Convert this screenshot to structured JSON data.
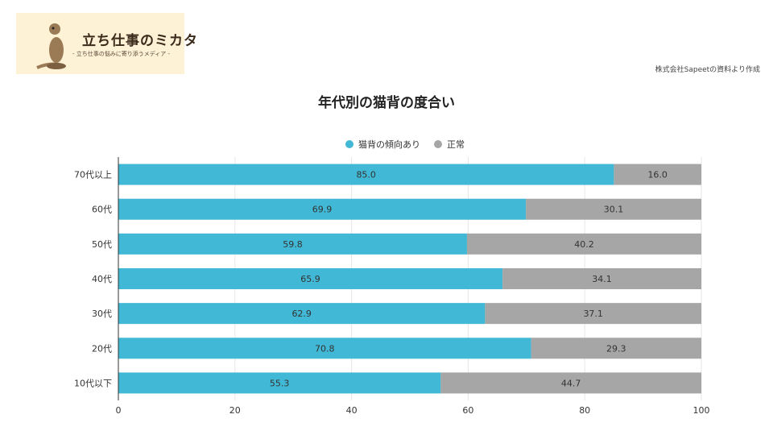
{
  "logo": {
    "title": "立ち仕事のミカタ",
    "tagline": "- 立ち仕事の悩みに寄り添うメディア -"
  },
  "source_note": "株式会社Sapeetの資料より作成",
  "colors": {
    "series1": "#41b8d5",
    "series2": "#a6a6a6",
    "grid": "#e6e6e6",
    "logo_bg": "#fdf1d6"
  },
  "chart_data": {
    "type": "bar",
    "orientation": "horizontal",
    "stacked": true,
    "title": "年代別の猫背の度合い",
    "categories": [
      "70代以上",
      "60代",
      "50代",
      "40代",
      "30代",
      "20代",
      "10代以下"
    ],
    "series": [
      {
        "name": "猫背の傾向あり",
        "color": "#41b8d5",
        "values": [
          85.0,
          69.9,
          59.8,
          65.9,
          62.9,
          70.8,
          55.3
        ],
        "labels": [
          "85.0",
          "69.9",
          "59.8",
          "65.9",
          "62.9",
          "70.8",
          "55.3"
        ]
      },
      {
        "name": "正常",
        "color": "#a6a6a6",
        "values": [
          16.0,
          30.1,
          40.2,
          34.1,
          37.1,
          29.3,
          44.7
        ],
        "labels": [
          "16.0",
          "30.1",
          "40.2",
          "34.1",
          "37.1",
          "29.3",
          "44.7"
        ]
      }
    ],
    "xlim": [
      0,
      100
    ],
    "xticks": [
      0,
      20,
      40,
      60,
      80,
      100
    ],
    "xtick_labels": [
      "0",
      "20",
      "40",
      "60",
      "80",
      "100"
    ],
    "grid": true,
    "legend_position": "top-center"
  }
}
